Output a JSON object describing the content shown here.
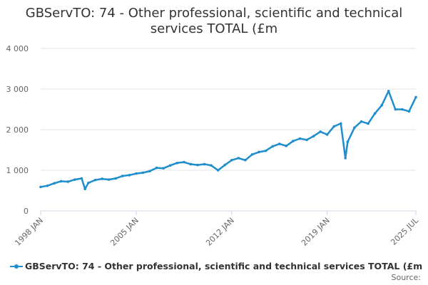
{
  "colors": {
    "series": "#1f8ecd",
    "grid": "#e6e6e6",
    "axis": "#ccd6eb",
    "text": "#333333"
  },
  "source_label": "Source:",
  "chart_data": {
    "type": "line",
    "title": "GBServTO: 74 - Other professional, scientific and technical services TOTAL (£m",
    "xlabel": "",
    "ylabel": "",
    "ylim": [
      0,
      4000
    ],
    "y_ticks": [
      {
        "value": 0,
        "label": "0"
      },
      {
        "value": 1000,
        "label": "1 000"
      },
      {
        "value": 2000,
        "label": "2 000"
      },
      {
        "value": 3000,
        "label": "3 000"
      },
      {
        "value": 4000,
        "label": "4 000"
      }
    ],
    "xlim": [
      "1998-01",
      "2025-07"
    ],
    "x_ticks": [
      {
        "value": "1998-01",
        "label": "1998 JAN"
      },
      {
        "value": "2005-01",
        "label": "2005 JAN"
      },
      {
        "value": "2012-01",
        "label": "2012 JAN"
      },
      {
        "value": "2019-01",
        "label": "2019 JAN"
      },
      {
        "value": "2025-07",
        "label": "2025 JUL"
      }
    ],
    "grid": true,
    "legend": "bottom",
    "series": [
      {
        "name": "GBServTO: 74 - Other professional, scientific and technical services TOTAL (£m",
        "points": [
          [
            "1998-01",
            590
          ],
          [
            "1998-07",
            620
          ],
          [
            "1999-01",
            680
          ],
          [
            "1999-07",
            730
          ],
          [
            "2000-01",
            720
          ],
          [
            "2000-07",
            770
          ],
          [
            "2001-01",
            800
          ],
          [
            "2001-04",
            540
          ],
          [
            "2001-07",
            690
          ],
          [
            "2002-01",
            760
          ],
          [
            "2002-07",
            790
          ],
          [
            "2003-01",
            770
          ],
          [
            "2003-07",
            800
          ],
          [
            "2004-01",
            860
          ],
          [
            "2004-07",
            880
          ],
          [
            "2005-01",
            920
          ],
          [
            "2005-07",
            940
          ],
          [
            "2006-01",
            980
          ],
          [
            "2006-07",
            1060
          ],
          [
            "2007-01",
            1050
          ],
          [
            "2007-07",
            1120
          ],
          [
            "2008-01",
            1180
          ],
          [
            "2008-07",
            1200
          ],
          [
            "2009-01",
            1150
          ],
          [
            "2009-07",
            1130
          ],
          [
            "2010-01",
            1150
          ],
          [
            "2010-07",
            1120
          ],
          [
            "2011-01",
            1000
          ],
          [
            "2011-07",
            1130
          ],
          [
            "2012-01",
            1250
          ],
          [
            "2012-07",
            1300
          ],
          [
            "2013-01",
            1250
          ],
          [
            "2013-07",
            1390
          ],
          [
            "2014-01",
            1450
          ],
          [
            "2014-07",
            1480
          ],
          [
            "2015-01",
            1590
          ],
          [
            "2015-07",
            1650
          ],
          [
            "2016-01",
            1600
          ],
          [
            "2016-07",
            1720
          ],
          [
            "2017-01",
            1780
          ],
          [
            "2017-07",
            1750
          ],
          [
            "2018-01",
            1840
          ],
          [
            "2018-07",
            1950
          ],
          [
            "2019-01",
            1880
          ],
          [
            "2019-07",
            2080
          ],
          [
            "2020-01",
            2150
          ],
          [
            "2020-05",
            1300
          ],
          [
            "2020-07",
            1700
          ],
          [
            "2021-01",
            2050
          ],
          [
            "2021-07",
            2200
          ],
          [
            "2022-01",
            2150
          ],
          [
            "2022-07",
            2400
          ],
          [
            "2023-01",
            2600
          ],
          [
            "2023-07",
            2950
          ],
          [
            "2024-01",
            2500
          ],
          [
            "2024-07",
            2500
          ],
          [
            "2025-01",
            2450
          ],
          [
            "2025-07",
            2800
          ]
        ]
      }
    ]
  }
}
